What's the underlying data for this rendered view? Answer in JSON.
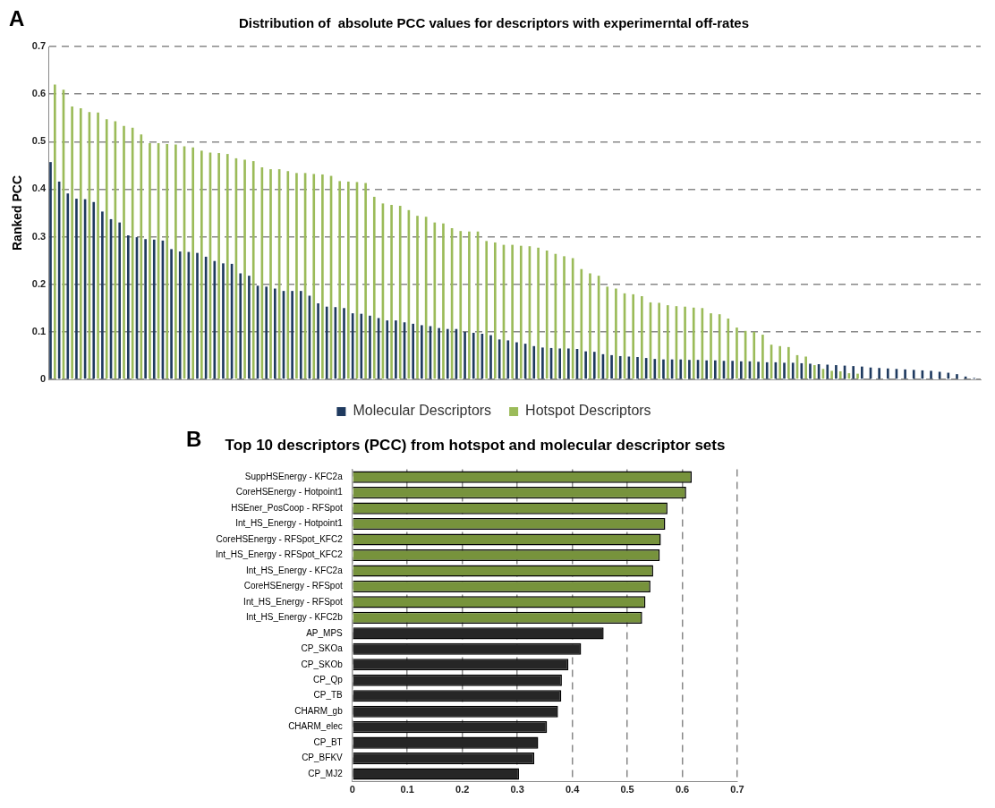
{
  "chart_data": [
    {
      "type": "bar",
      "title": "Distribution of  absolute PCC values for descriptors with experimerntal off-rates",
      "ylabel": "Ranked PCC",
      "annotations": [
        "A"
      ],
      "categories": [
        null,
        null,
        null,
        null,
        null,
        null,
        null,
        null,
        null,
        null,
        null,
        null,
        null,
        null,
        null,
        null,
        null,
        null,
        null,
        null,
        null,
        null,
        null,
        null,
        null,
        null,
        null,
        null,
        null,
        null,
        null,
        null,
        null,
        null,
        null,
        null,
        null,
        null,
        null,
        null,
        null,
        null,
        null,
        null,
        null,
        null,
        null,
        null,
        null,
        null,
        null,
        null,
        null,
        null,
        null,
        null,
        null,
        null,
        null,
        null,
        null,
        null,
        null,
        null,
        null,
        null,
        null,
        null,
        null,
        null,
        null,
        null,
        null,
        null,
        null,
        null,
        null,
        null,
        null,
        null,
        null,
        null,
        null,
        null,
        null,
        null,
        null,
        null,
        null,
        null,
        null,
        null,
        null,
        null,
        null,
        null,
        null,
        null,
        null,
        null,
        null,
        null,
        null,
        null,
        null,
        null,
        null,
        null
      ],
      "series": [
        {
          "name": "Molecular Descriptors",
          "color": "#1f3a5f",
          "values": [
            0.457,
            0.416,
            0.391,
            0.38,
            0.379,
            0.373,
            0.353,
            0.337,
            0.33,
            0.303,
            0.299,
            0.295,
            0.294,
            0.292,
            0.274,
            0.269,
            0.268,
            0.266,
            0.258,
            0.249,
            0.244,
            0.243,
            0.223,
            0.218,
            0.197,
            0.195,
            0.191,
            0.186,
            0.186,
            0.186,
            0.176,
            0.16,
            0.153,
            0.152,
            0.15,
            0.139,
            0.138,
            0.134,
            0.129,
            0.124,
            0.124,
            0.12,
            0.117,
            0.114,
            0.112,
            0.108,
            0.106,
            0.106,
            0.1,
            0.098,
            0.096,
            0.093,
            0.084,
            0.082,
            0.078,
            0.075,
            0.07,
            0.067,
            0.066,
            0.065,
            0.065,
            0.064,
            0.059,
            0.058,
            0.053,
            0.051,
            0.049,
            0.048,
            0.047,
            0.045,
            0.043,
            0.042,
            0.042,
            0.042,
            0.041,
            0.041,
            0.04,
            0.04,
            0.039,
            0.039,
            0.038,
            0.038,
            0.037,
            0.036,
            0.036,
            0.035,
            0.035,
            0.034,
            0.033,
            0.032,
            0.031,
            0.03,
            0.029,
            0.028,
            0.027,
            0.025,
            0.024,
            0.023,
            0.022,
            0.021,
            0.02,
            0.019,
            0.018,
            0.016,
            0.014,
            0.011,
            0.006,
            0.003
          ]
        },
        {
          "name": "Hotspot Descriptors",
          "color": "#9bbb59",
          "values": [
            0.62,
            0.609,
            0.574,
            0.57,
            0.562,
            0.561,
            0.547,
            0.543,
            0.533,
            0.529,
            0.515,
            0.497,
            0.497,
            0.495,
            0.494,
            0.49,
            0.488,
            0.481,
            0.477,
            0.476,
            0.474,
            0.465,
            0.462,
            0.459,
            0.446,
            0.442,
            0.442,
            0.438,
            0.434,
            0.434,
            0.432,
            0.431,
            0.428,
            0.417,
            0.416,
            0.415,
            0.413,
            0.384,
            0.37,
            0.367,
            0.365,
            0.356,
            0.344,
            0.342,
            0.33,
            0.328,
            0.318,
            0.312,
            0.311,
            0.311,
            0.291,
            0.288,
            0.283,
            0.283,
            0.281,
            0.28,
            0.277,
            0.271,
            0.264,
            0.259,
            0.255,
            0.232,
            0.223,
            0.218,
            0.195,
            0.191,
            0.181,
            0.179,
            0.175,
            0.162,
            0.161,
            0.156,
            0.154,
            0.153,
            0.151,
            0.15,
            0.139,
            0.137,
            0.128,
            0.109,
            0.102,
            0.1,
            0.094,
            0.073,
            0.07,
            0.068,
            0.051,
            0.048,
            0.03,
            0.022,
            0.018,
            0.017,
            0.013,
            0.012,
            null,
            null,
            null,
            null,
            null,
            null,
            null,
            null,
            null,
            null,
            null,
            null,
            null,
            null
          ]
        }
      ],
      "ylim": [
        0,
        0.7
      ],
      "yticks": [
        0,
        0.1,
        0.2,
        0.3,
        0.4,
        0.5,
        0.6,
        0.7
      ],
      "grid": "y",
      "legend": "bottom",
      "tick_labels": "y"
    },
    {
      "type": "bar",
      "orientation": "horizontal",
      "title": "Top 10 descriptors (PCC) from hotspot and molecular descriptor sets",
      "annotations": [
        "B"
      ],
      "categories": [
        "SuppHSEnergy - KFC2a",
        "CoreHSEnergy - Hotpoint1",
        "HSEner_PosCoop - RFSpot",
        "Int_HS_Energy - Hotpoint1",
        "CoreHSEnergy - RFSpot_KFC2",
        "Int_HS_Energy - RFSpot_KFC2",
        "Int_HS_Energy - KFC2a",
        "CoreHSEnergy - RFSpot",
        "Int_HS_Energy - RFSpot",
        "Int_HS_Energy - KFC2b",
        "AP_MPS",
        "CP_SKOa",
        "CP_SKOb",
        "CP_Qp",
        "CP_TB",
        "CHARM_gb",
        "CHARM_elec",
        "CP_BT",
        "CP_BFKV",
        "CP_MJ2"
      ],
      "values": [
        0.617,
        0.607,
        0.573,
        0.569,
        0.561,
        0.559,
        0.547,
        0.542,
        0.533,
        0.527,
        0.457,
        0.416,
        0.393,
        0.381,
        0.38,
        0.374,
        0.354,
        0.338,
        0.331,
        0.303
      ],
      "colors": [
        "#77933c",
        "#77933c",
        "#77933c",
        "#77933c",
        "#77933c",
        "#77933c",
        "#77933c",
        "#77933c",
        "#77933c",
        "#77933c",
        "#262626",
        "#262626",
        "#262626",
        "#262626",
        "#262626",
        "#262626",
        "#262626",
        "#262626",
        "#262626",
        "#262626"
      ],
      "xlim": [
        0,
        0.7
      ],
      "xticks": [
        0,
        0.1,
        0.2,
        0.3,
        0.4,
        0.5,
        0.6,
        0.7
      ],
      "grid": "x"
    }
  ]
}
